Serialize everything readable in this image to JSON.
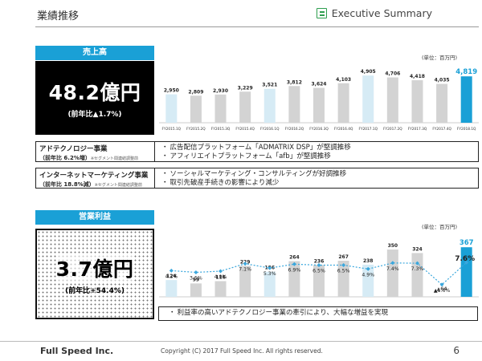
{
  "header": {
    "title": "業績推移",
    "exec_label": "Executive Summary"
  },
  "sales": {
    "badge": "売上高",
    "big_value": "48.2億円",
    "big_sub": "(前年比▲1.7%)",
    "unit": "(単位：百万円)",
    "segments": [
      {
        "name": "アドテクノロジー事業",
        "sub": "（前年比 6.2%増）",
        "note": "※セグメント間連結調整前",
        "bullets": [
          "広告配信プラットフォーム「ADMATRIX DSP」が堅調推移",
          "アフィリエイトプラットフォーム「afb」が堅調推移"
        ]
      },
      {
        "name": "インターネットマーケティング事業",
        "sub": "（前年比 18.8%減）",
        "note": "※セグメント間連結調整前",
        "bullets": [
          "ソーシャルマーケティング・コンサルティングが好調推移",
          "取引先破産手続きの影響により減少"
        ]
      }
    ]
  },
  "profit": {
    "badge": "営業利益",
    "big_value": "3.7億円",
    "big_sub": "(前年比+54.4%)",
    "unit": "(単位：百万円)",
    "bullet": "利益率の高いアドテクノロジー事業の牽引により、大幅な増益を実現"
  },
  "chart_data": [
    {
      "type": "bar",
      "categories": [
        "FY2015.1Q",
        "FY2015.2Q",
        "FY2015.3Q",
        "FY2015.4Q",
        "FY2016.1Q",
        "FY2016.2Q",
        "FY2016.3Q",
        "FY2016.4Q",
        "FY2017.1Q",
        "FY2017.2Q",
        "FY2017.3Q",
        "FY2017.4Q",
        "FY2018.1Q"
      ],
      "values": [
        2950,
        2809,
        2930,
        3229,
        3521,
        3812,
        3624,
        4103,
        4905,
        4706,
        4418,
        4035,
        4819
      ],
      "labels": [
        "2,950",
        "2,809",
        "2,930",
        "3,229",
        "3,521",
        "3,812",
        "3,624",
        "4,103",
        "4,905",
        "4,706",
        "4,418",
        "4,035",
        "4,819"
      ],
      "colors": {
        "regular": "#d3d3d3",
        "first_quarter": "#d6ebf5",
        "latest": "#1aa0d6"
      }
    },
    {
      "type": "bar",
      "categories": [
        "FY2015.1Q",
        "FY2015.2Q",
        "FY2015.3Q",
        "FY2015.4Q",
        "FY2016.1Q",
        "FY2016.2Q",
        "FY2016.3Q",
        "FY2016.4Q",
        "FY2017.1Q",
        "FY2017.2Q",
        "FY2017.3Q",
        "FY2017.4Q",
        "FY2018.1Q"
      ],
      "values": [
        124,
        99,
        116,
        229,
        186,
        264,
        236,
        267,
        238,
        350,
        324,
        -64,
        367
      ],
      "labels": [
        "124",
        "99",
        "116",
        "229",
        "186",
        "264",
        "236",
        "267",
        "238",
        "350",
        "324",
        "▲64",
        "367"
      ],
      "margin_values": [
        4.2,
        3.5,
        4.0,
        7.1,
        5.3,
        6.9,
        6.5,
        6.5,
        4.9,
        7.4,
        7.3,
        -1.6,
        7.6
      ],
      "margin_labels": [
        "4.2%",
        "3.5%",
        "4.0%",
        "7.1%",
        "5.3%",
        "6.9%",
        "6.5%",
        "6.5%",
        "4.9%",
        "7.4%",
        "7.3%",
        "▲1.6%",
        "7.6%"
      ],
      "colors": {
        "regular": "#d3d3d3",
        "first_quarter": "#d6ebf5",
        "latest": "#1aa0d6",
        "line": "#3aa7dd"
      }
    }
  ],
  "footer": {
    "logo": "Full Speed Inc.",
    "copyright": "Copyright (C) 2017 Full Speed Inc. All rights reserved.",
    "page": "6"
  }
}
